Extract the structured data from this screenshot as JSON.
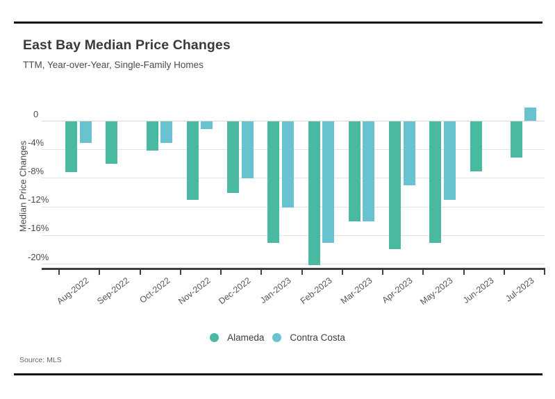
{
  "header": {
    "title": "East Bay Median Price Changes",
    "subtitle": "TTM, Year-over-Year, Single-Family Homes"
  },
  "footer": {
    "source": "Source: MLS"
  },
  "colors": {
    "alameda": "#49b9a2",
    "contra_costa": "#68c2d0",
    "gridline": "#e3e3e3",
    "axis": "#3e3e3e",
    "rule": "#111111"
  },
  "chart_data": {
    "type": "bar",
    "title": "East Bay Median Price Changes",
    "subtitle": "TTM, Year-over-Year, Single-Family Homes",
    "ylabel": "Median Price Changes",
    "xlabel": "",
    "categories": [
      "Aug-2022",
      "Sep-2022",
      "Oct-2022",
      "Nov-2022",
      "Dec-2022",
      "Jan-2023",
      "Feb-2023",
      "Mar-2023",
      "Apr-2023",
      "May-2023",
      "Jun-2023",
      "Jul-2023"
    ],
    "series": [
      {
        "name": "Alameda",
        "color": "#49b9a2",
        "values": [
          -7.1,
          -6.0,
          -4.1,
          -11.0,
          -10.0,
          -17.0,
          -20.1,
          -14.0,
          -17.9,
          -17.0,
          -7.0,
          -5.1
        ]
      },
      {
        "name": "Contra Costa",
        "color": "#68c2d0",
        "values": [
          -3.1,
          0,
          -3.1,
          -1.1,
          -8.0,
          -12.1,
          -17.0,
          -14.0,
          -9.0,
          -11.0,
          0,
          1.9
        ]
      }
    ],
    "yticks": [
      0,
      -4,
      -8,
      -12,
      -16,
      -20
    ],
    "ytick_labels": [
      "0",
      "-4%",
      "-8%",
      "-12%",
      "-16%",
      "-20%"
    ],
    "ylim": [
      -22,
      2.5
    ],
    "grid": true,
    "legend_position": "bottom",
    "source": "Source: MLS"
  }
}
